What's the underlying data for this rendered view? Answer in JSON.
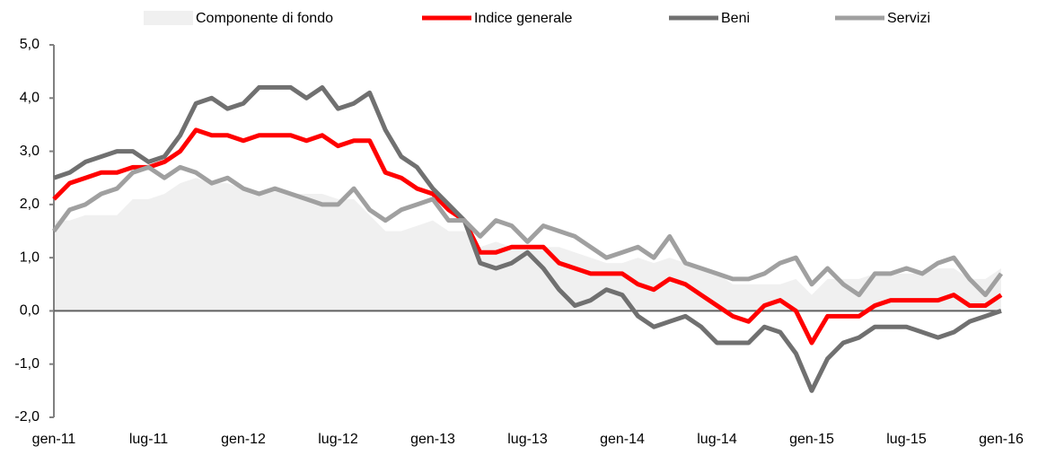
{
  "chart_data": {
    "type": "line",
    "categories": [
      "gen-11",
      null,
      null,
      null,
      null,
      null,
      "lug-11",
      null,
      null,
      null,
      null,
      null,
      "gen-12",
      null,
      null,
      null,
      null,
      null,
      "lug-12",
      null,
      null,
      null,
      null,
      null,
      "gen-13",
      null,
      null,
      null,
      null,
      null,
      "lug-13",
      null,
      null,
      null,
      null,
      null,
      "gen-14",
      null,
      null,
      null,
      null,
      null,
      "lug-14",
      null,
      null,
      null,
      null,
      null,
      "gen-15",
      null,
      null,
      null,
      null,
      null,
      "lug-15",
      null,
      null,
      null,
      null,
      null,
      "gen-16"
    ],
    "series": [
      {
        "name": "Componente di fondo",
        "kind": "area",
        "color": "#f0f0f0",
        "values": [
          1.7,
          1.7,
          1.8,
          1.8,
          1.8,
          2.1,
          2.1,
          2.2,
          2.4,
          2.5,
          2.4,
          2.4,
          2.3,
          2.2,
          2.3,
          2.2,
          2.2,
          2.2,
          2.1,
          2.1,
          1.8,
          1.5,
          1.5,
          1.6,
          1.7,
          1.5,
          1.5,
          1.2,
          1.3,
          1.2,
          1.2,
          1.2,
          1.2,
          1.1,
          1.0,
          0.9,
          0.9,
          1.0,
          0.9,
          1.0,
          0.9,
          0.8,
          0.7,
          0.5,
          0.5,
          0.5,
          0.5,
          0.6,
          0.3,
          0.6,
          0.6,
          0.6,
          0.7,
          0.7,
          0.7,
          0.7,
          0.8,
          0.8,
          0.6,
          0.6,
          0.8
        ]
      },
      {
        "name": "Indice generale",
        "color": "#ff0000",
        "values": [
          2.1,
          2.4,
          2.5,
          2.6,
          2.6,
          2.7,
          2.7,
          2.8,
          3.0,
          3.4,
          3.3,
          3.3,
          3.2,
          3.3,
          3.3,
          3.3,
          3.2,
          3.3,
          3.1,
          3.2,
          3.2,
          2.6,
          2.5,
          2.3,
          2.2,
          1.9,
          1.7,
          1.1,
          1.1,
          1.2,
          1.2,
          1.2,
          0.9,
          0.8,
          0.7,
          0.7,
          0.7,
          0.5,
          0.4,
          0.6,
          0.5,
          0.3,
          0.1,
          -0.1,
          -0.2,
          0.1,
          0.2,
          0.0,
          -0.6,
          -0.1,
          -0.1,
          -0.1,
          0.1,
          0.2,
          0.2,
          0.2,
          0.2,
          0.3,
          0.1,
          0.1,
          0.3
        ]
      },
      {
        "name": "Beni",
        "color": "#707070",
        "values": [
          2.5,
          2.6,
          2.8,
          2.9,
          3.0,
          3.0,
          2.8,
          2.9,
          3.3,
          3.9,
          4.0,
          3.8,
          3.9,
          4.2,
          4.2,
          4.2,
          4.0,
          4.2,
          3.8,
          3.9,
          4.1,
          3.4,
          2.9,
          2.7,
          2.3,
          2.0,
          1.7,
          0.9,
          0.8,
          0.9,
          1.1,
          0.8,
          0.4,
          0.1,
          0.2,
          0.4,
          0.3,
          -0.1,
          -0.3,
          -0.2,
          -0.1,
          -0.3,
          -0.6,
          -0.6,
          -0.6,
          -0.3,
          -0.4,
          -0.8,
          -1.5,
          -0.9,
          -0.6,
          -0.5,
          -0.3,
          -0.3,
          -0.3,
          -0.4,
          -0.5,
          -0.4,
          -0.2,
          -0.1,
          0.0
        ]
      },
      {
        "name": "Servizi",
        "color": "#a0a0a0",
        "values": [
          1.5,
          1.9,
          2.0,
          2.2,
          2.3,
          2.6,
          2.7,
          2.5,
          2.7,
          2.6,
          2.4,
          2.5,
          2.3,
          2.2,
          2.3,
          2.2,
          2.1,
          2.0,
          2.0,
          2.3,
          1.9,
          1.7,
          1.9,
          2.0,
          2.1,
          1.7,
          1.7,
          1.4,
          1.7,
          1.6,
          1.3,
          1.6,
          1.5,
          1.4,
          1.2,
          1.0,
          1.1,
          1.2,
          1.0,
          1.4,
          0.9,
          0.8,
          0.7,
          0.6,
          0.6,
          0.7,
          0.9,
          1.0,
          0.5,
          0.8,
          0.5,
          0.3,
          0.7,
          0.7,
          0.8,
          0.7,
          0.9,
          1.0,
          0.6,
          0.3,
          0.7
        ]
      }
    ],
    "ylim": [
      -2,
      5
    ],
    "yticks": [
      {
        "value": -2,
        "label": "-2,0"
      },
      {
        "value": -1,
        "label": "-1,0"
      },
      {
        "value": 0,
        "label": "0,0"
      },
      {
        "value": 1,
        "label": "1,0"
      },
      {
        "value": 2,
        "label": "2,0"
      },
      {
        "value": 3,
        "label": "3,0"
      },
      {
        "value": 4,
        "label": "4,0"
      },
      {
        "value": 5,
        "label": "5,0"
      }
    ],
    "legend": "top"
  }
}
